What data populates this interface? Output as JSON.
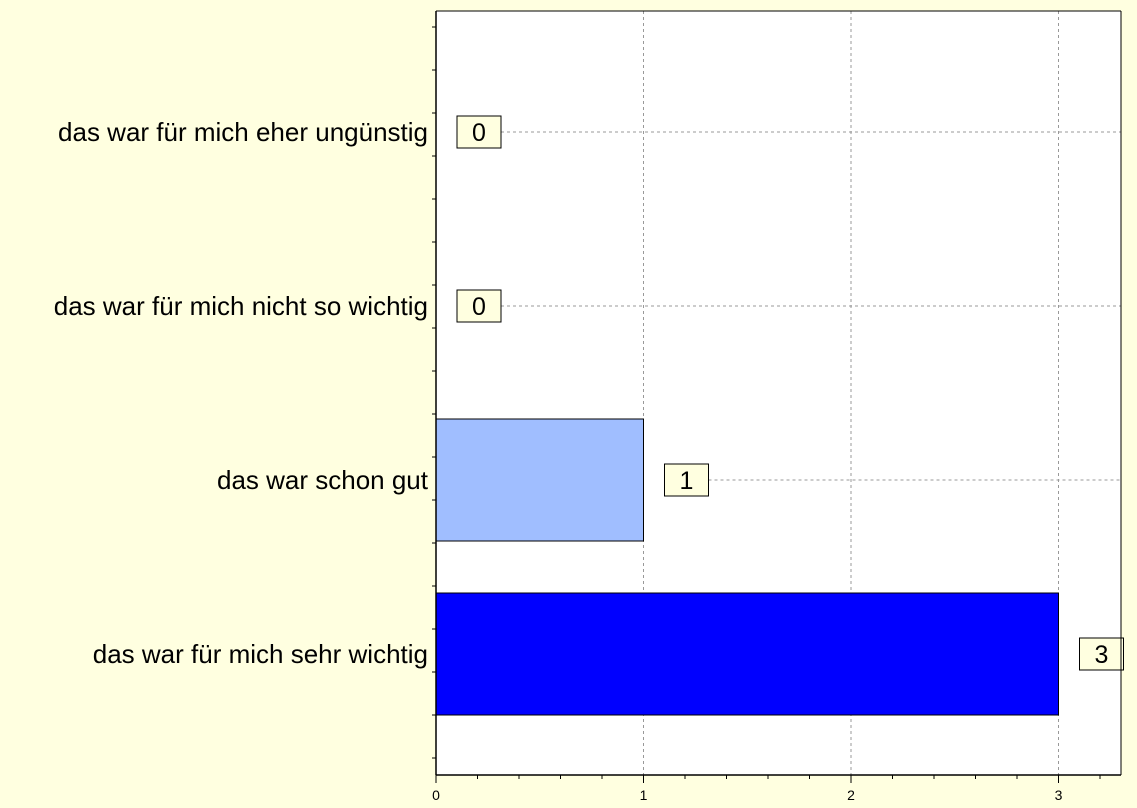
{
  "chart_data": {
    "type": "bar",
    "orientation": "horizontal",
    "categories": [
      "das war für mich eher ungünstig",
      "das war für mich nicht so wichtig",
      "das war schon gut",
      "das war für mich sehr wichtig"
    ],
    "values": [
      0,
      0,
      1,
      3
    ],
    "bar_colors": [
      "#A0BEFF",
      "#A0BEFF",
      "#A0BEFF",
      "#0000FF"
    ],
    "xlim": [
      0,
      3.3
    ],
    "xticks": [
      "0",
      "1",
      "2",
      "3"
    ],
    "grid": true,
    "title": "",
    "xlabel": "",
    "ylabel": ""
  },
  "colors": {
    "background": "#FFFFE0",
    "plot_background": "#FFFFFF",
    "label_box": "#FFFFE0",
    "gridline": "#999999"
  }
}
